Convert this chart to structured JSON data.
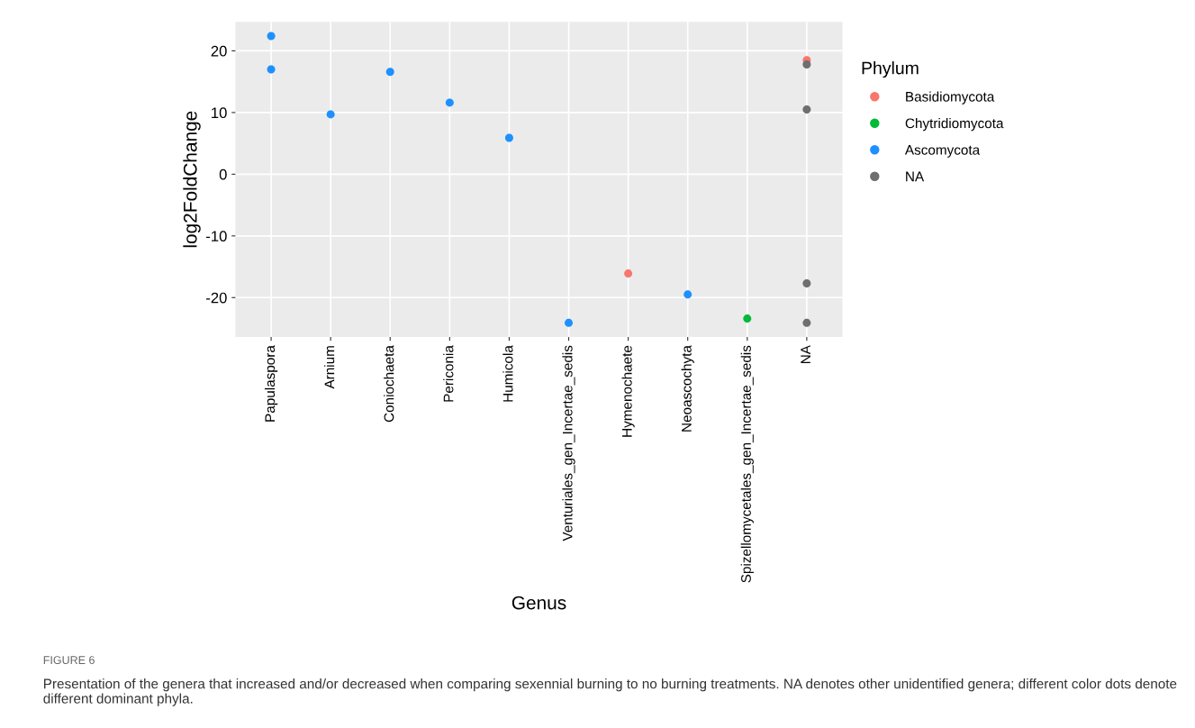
{
  "chart_data": {
    "type": "scatter",
    "xlabel": "Genus",
    "ylabel": "log2FoldChange",
    "legend_title": "Phylum",
    "legend": "right",
    "categories": [
      "Papulaspora",
      "Arnium",
      "Coniochaeta",
      "Periconia",
      "Humicola",
      "Venturiales_gen_Incertae_sedis",
      "Hymenochaete",
      "Neoascochyta",
      "Spizellomycetales_gen_Incertae_sedis",
      "NA"
    ],
    "series": [
      {
        "name": "Basidiomycota",
        "color": "#f8766d",
        "x": [
          "Hymenochaete",
          "NA"
        ],
        "values": [
          -16.1,
          18.5
        ]
      },
      {
        "name": "Chytridiomycota",
        "color": "#00ba38",
        "x": [
          "Spizellomycetales_gen_Incertae_sedis"
        ],
        "values": [
          -23.4
        ]
      },
      {
        "name": "Ascomycota",
        "color": "#1e90ff",
        "x": [
          "Papulaspora",
          "Papulaspora",
          "Arnium",
          "Coniochaeta",
          "Periconia",
          "Humicola",
          "Venturiales_gen_Incertae_sedis",
          "Neoascochyta"
        ],
        "values": [
          22.4,
          17.0,
          9.7,
          16.6,
          11.6,
          5.9,
          -24.1,
          -19.5
        ]
      },
      {
        "name": "NA",
        "color": "#6f6f6f",
        "x": [
          "NA",
          "NA",
          "NA",
          "NA"
        ],
        "values": [
          17.8,
          10.5,
          -17.7,
          -24.1
        ]
      }
    ],
    "ylim": [
      -26.4,
      24.7
    ],
    "yticks": [
      -20,
      -10,
      0,
      10,
      20
    ],
    "grid": true,
    "marker": "circle",
    "annotations": [
      "FIGURE 6",
      "Presentation of the genera that increased and/or decreased when comparing sexennial burning to no burning treatments. NA denotes other unidentified genera; different color dots denote different dominant phyla."
    ]
  }
}
